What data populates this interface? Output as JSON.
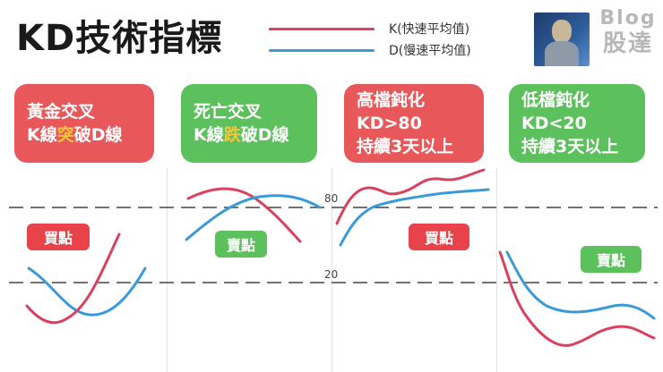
{
  "title": "KD技術指標",
  "legend": [
    {
      "label": "K(快速平均值)",
      "color": "#d9415e"
    },
    {
      "label": "D(慢速平均值)",
      "color": "#3a9ad9"
    }
  ],
  "logo": {
    "line1": "Blog",
    "line2": "股達"
  },
  "cards": [
    {
      "line1": "黃金交叉",
      "line2_pre": "K線",
      "line2_hl": "突",
      "line2_post": "破D線",
      "color": "red"
    },
    {
      "line1": "死亡交叉",
      "line2_pre": "K線",
      "line2_hl": "跌",
      "line2_post": "破D線",
      "color": "green"
    },
    {
      "line1": "高檔鈍化",
      "line2": "KD>80",
      "line3": "持續3天以上",
      "color": "red"
    },
    {
      "line1": "低檔鈍化",
      "line2": "KD<20",
      "line3": "持續3天以上",
      "color": "green"
    }
  ],
  "levels": {
    "high": "80",
    "low": "20"
  },
  "badges": {
    "buy1": "買點",
    "sell1": "賣點",
    "buy2": "買點",
    "sell2": "賣點"
  },
  "colors": {
    "k_line": "#d9415e",
    "d_line": "#3a9ad9",
    "card_red": "#e8585a",
    "card_green": "#5cc05c",
    "highlight": "#f5c63a"
  }
}
